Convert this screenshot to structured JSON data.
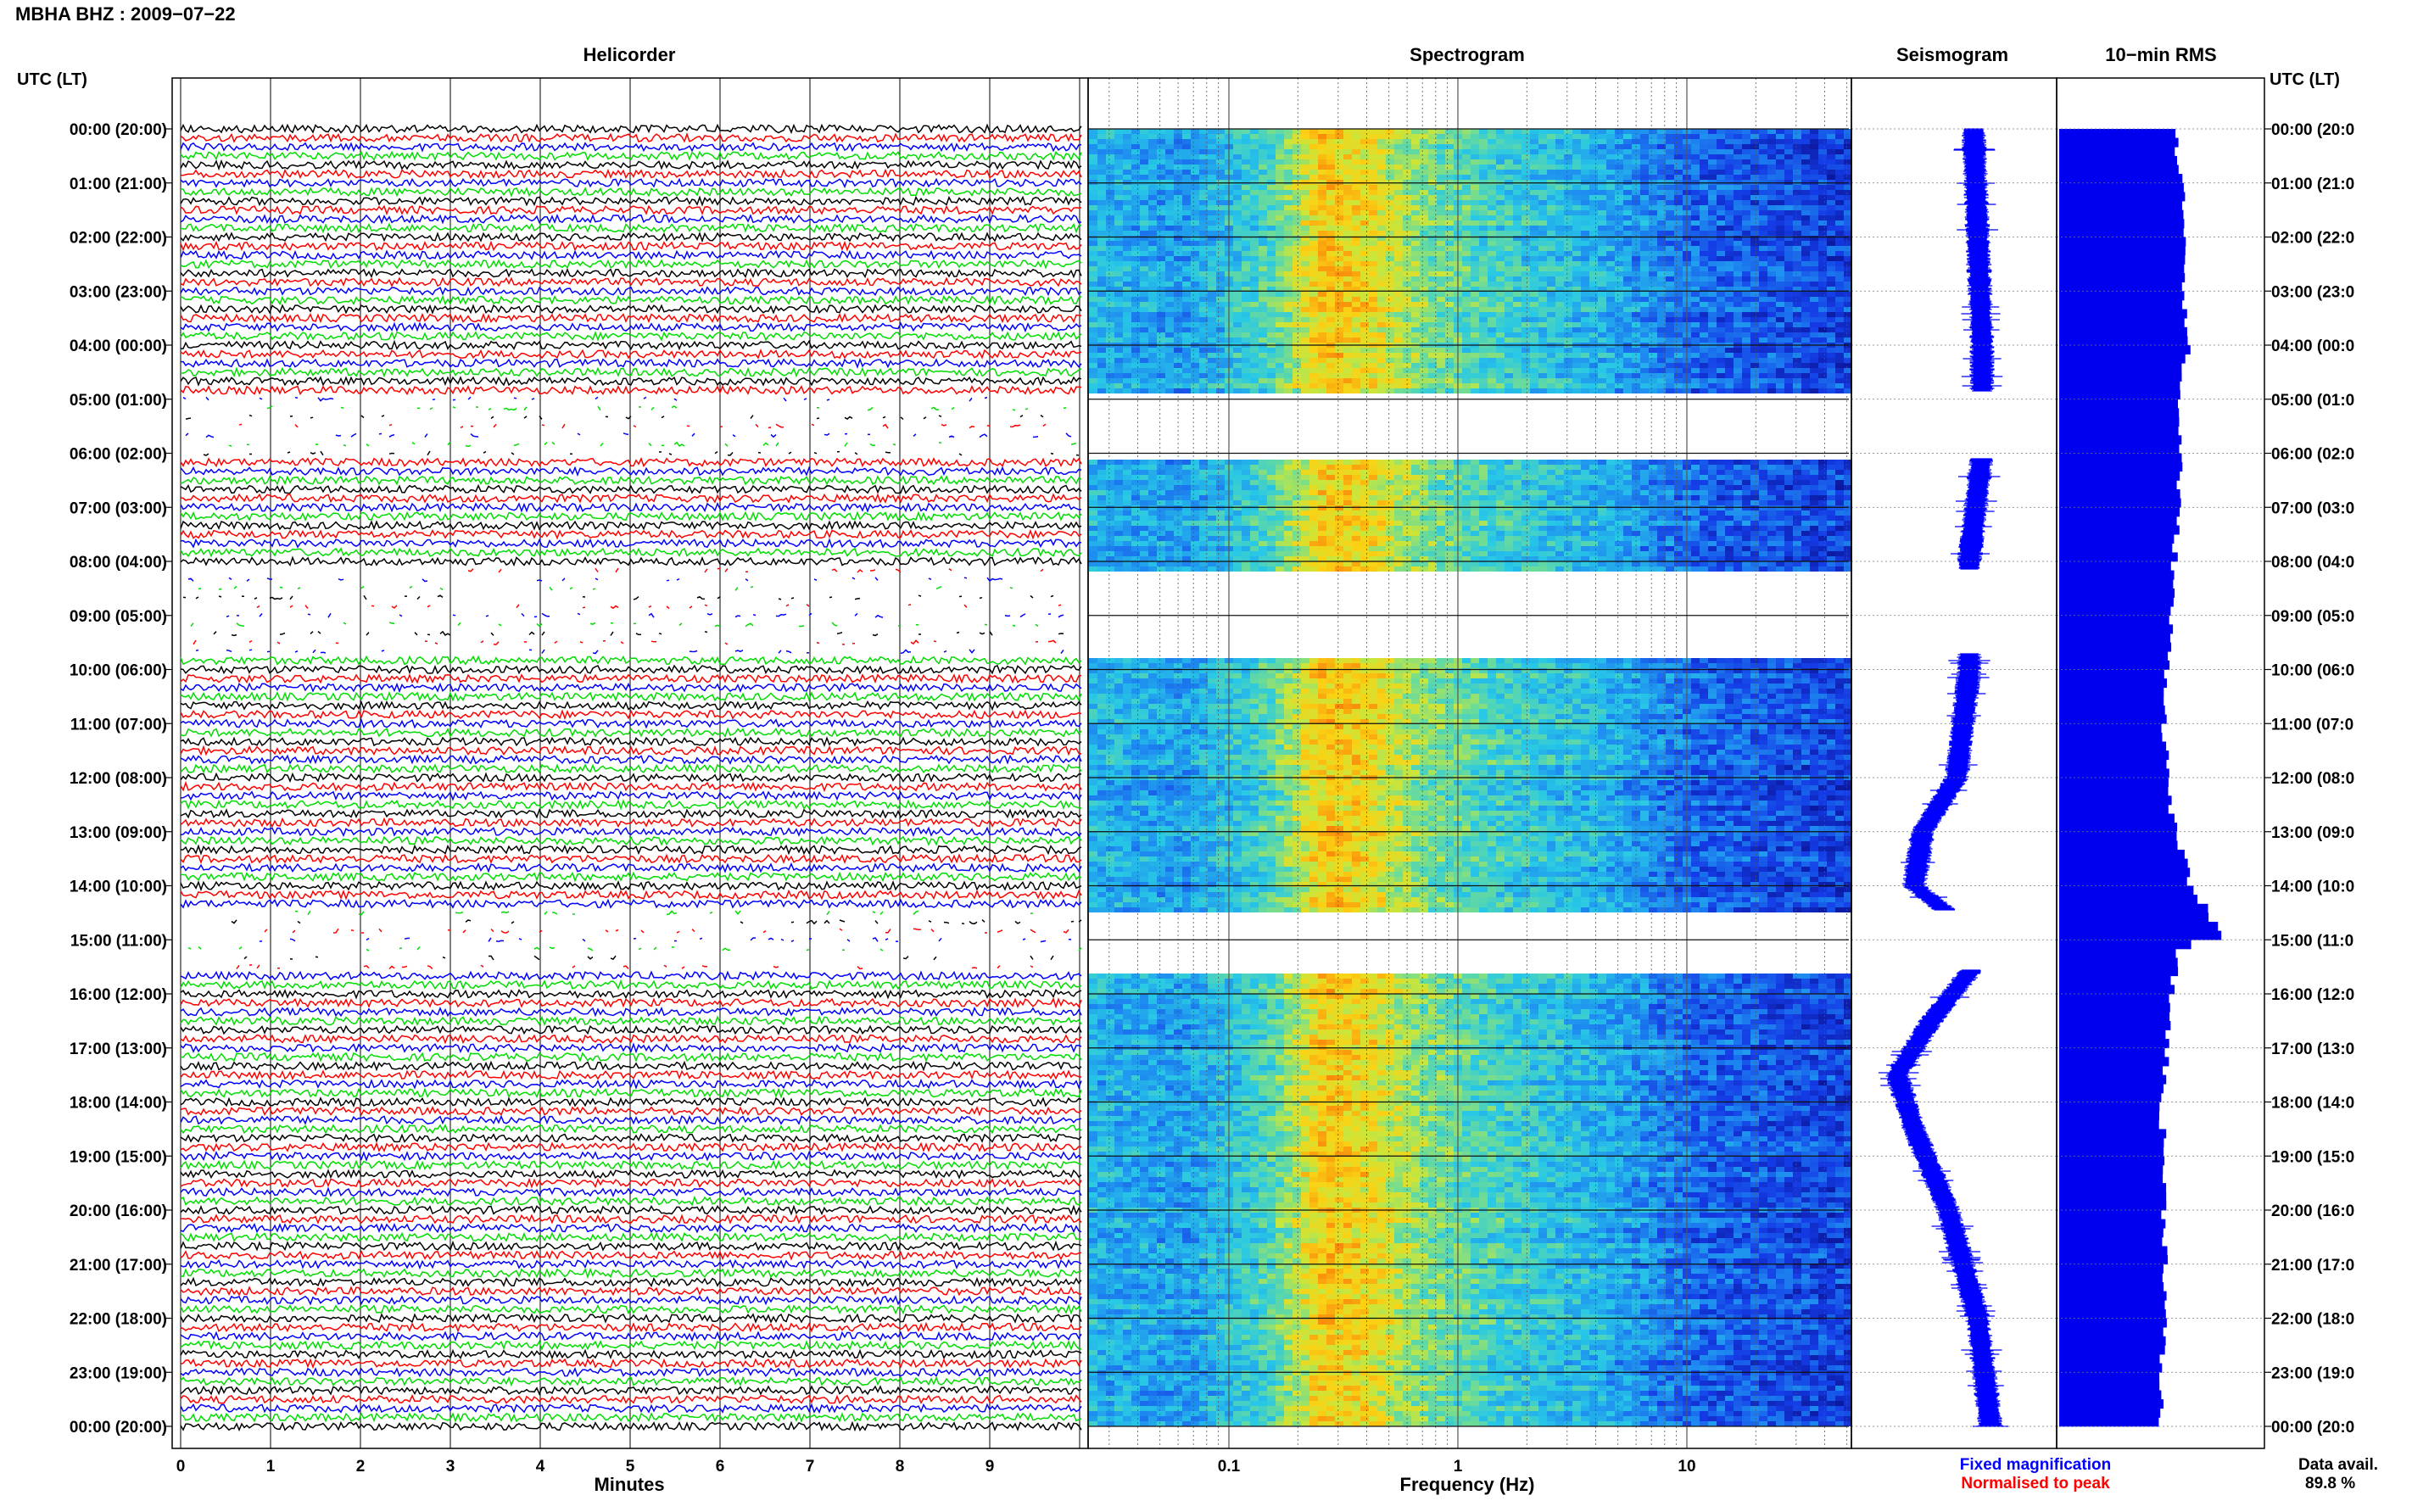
{
  "header": {
    "title": "MBHA BHZ : 2009−07−22",
    "utc_lt_left": "UTC (LT)",
    "utc_lt_right": "UTC (LT)"
  },
  "panels": {
    "helicorder": "Helicorder",
    "spectrogram": "Spectrogram",
    "seismogram": "Seismogram",
    "rms": "10−min RMS"
  },
  "axes": {
    "minutes_label": "Minutes",
    "frequency_label": "Frequency (Hz)",
    "minute_ticks": [
      "0",
      "1",
      "2",
      "3",
      "4",
      "5",
      "6",
      "7",
      "8",
      "9"
    ],
    "frequency_ticks": [
      "0.1",
      "1",
      "10"
    ]
  },
  "time_labels_left": [
    "00:00 (20:00)",
    "01:00 (21:00)",
    "02:00 (22:00)",
    "03:00 (23:00)",
    "04:00 (00:00)",
    "05:00 (01:00)",
    "06:00 (02:00)",
    "07:00 (03:00)",
    "08:00 (04:00)",
    "09:00 (05:00)",
    "10:00 (06:00)",
    "11:00 (07:00)",
    "12:00 (08:00)",
    "13:00 (09:00)",
    "14:00 (10:00)",
    "15:00 (11:00)",
    "16:00 (12:00)",
    "17:00 (13:00)",
    "18:00 (14:00)",
    "19:00 (15:00)",
    "20:00 (16:00)",
    "21:00 (17:00)",
    "22:00 (18:00)",
    "23:00 (19:00)",
    "00:00 (20:00)"
  ],
  "time_labels_right": [
    "00:00 (20:0",
    "01:00 (21:0",
    "02:00 (22:0",
    "03:00 (23:0",
    "04:00 (00:0",
    "05:00 (01:0",
    "06:00 (02:0",
    "07:00 (03:0",
    "08:00 (04:0",
    "09:00 (05:0",
    "10:00 (06:0",
    "11:00 (07:0",
    "12:00 (08:0",
    "13:00 (09:0",
    "14:00 (10:0",
    "15:00 (11:0",
    "16:00 (12:0",
    "17:00 (13:0",
    "18:00 (14:0",
    "19:00 (15:0",
    "20:00 (16:0",
    "21:00 (17:0",
    "22:00 (18:0",
    "23:00 (19:0",
    "00:00 (20:0"
  ],
  "footer": {
    "fixed_magnification": "Fixed magnification",
    "normalised_to_peak": "Normalised to peak",
    "data_avail_label": "Data avail.",
    "data_avail_value": "89.8 %"
  },
  "colors": {
    "trace_colors": [
      "#000000",
      "#ff0000",
      "#0000ff",
      "#00dd00"
    ],
    "seismogram": "#0000ff",
    "rms_bar": "#0000ee",
    "fixed_magnification": "#0000ff",
    "normalised_to_peak": "#ff0000"
  },
  "chart_data": {
    "type": "heatmap",
    "panels": [
      "helicorder",
      "spectrogram",
      "seismogram",
      "rms"
    ],
    "time_range_utc_hours": [
      0,
      24
    ],
    "minutes_range": [
      0,
      10
    ],
    "frequency_range_hz": [
      0.01,
      50
    ],
    "frequency_scale": "log",
    "gaps_utc_hours": [
      [
        4.85,
        6.1
      ],
      [
        8.15,
        9.7
      ],
      [
        14.45,
        15.55
      ]
    ],
    "spectrogram_bands": [
      {
        "freq_hz": 0.02,
        "level": 0.42
      },
      {
        "freq_hz": 0.06,
        "level": 0.35
      },
      {
        "freq_hz": 0.1,
        "level": 0.45
      },
      {
        "freq_hz": 0.15,
        "level": 0.55
      },
      {
        "freq_hz": 0.25,
        "level": 0.86
      },
      {
        "freq_hz": 0.4,
        "level": 0.8
      },
      {
        "freq_hz": 0.7,
        "level": 0.62
      },
      {
        "freq_hz": 1.5,
        "level": 0.5
      },
      {
        "freq_hz": 4,
        "level": 0.4
      },
      {
        "freq_hz": 10,
        "level": 0.24
      },
      {
        "freq_hz": 40,
        "level": 0.16
      }
    ],
    "seismogram_offset": {
      "hours": [
        0,
        2,
        4,
        6,
        8,
        10,
        12,
        13,
        14,
        14.5,
        15.5,
        16.5,
        17.5,
        18.5,
        20,
        22,
        24
      ],
      "values": [
        0.0,
        0.05,
        0.1,
        0.1,
        -0.05,
        -0.05,
        -0.2,
        -0.6,
        -0.7,
        -0.3,
        0.0,
        -0.5,
        -0.9,
        -0.7,
        -0.3,
        0.05,
        0.2
      ]
    },
    "rms_10min": {
      "hours": [
        0,
        1,
        2,
        3,
        4,
        5,
        6,
        7,
        8,
        9,
        10,
        11,
        12,
        13,
        14,
        14.9,
        15.2,
        16,
        17,
        18,
        19,
        20,
        21,
        22,
        23,
        24
      ],
      "values": [
        0.68,
        0.72,
        0.75,
        0.74,
        0.76,
        0.7,
        0.72,
        0.7,
        0.68,
        0.66,
        0.64,
        0.62,
        0.64,
        0.68,
        0.78,
        0.95,
        0.7,
        0.66,
        0.64,
        0.6,
        0.62,
        0.62,
        0.63,
        0.62,
        0.6,
        0.6
      ]
    }
  }
}
